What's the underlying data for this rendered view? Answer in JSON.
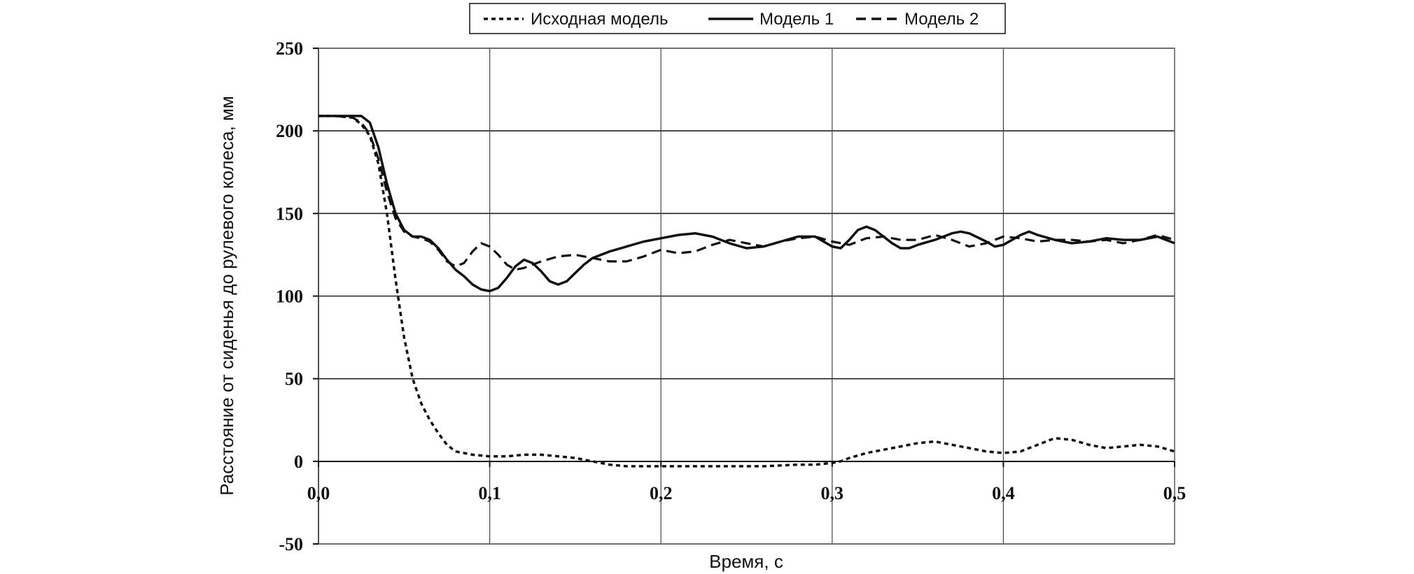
{
  "chart_data": {
    "type": "line",
    "xlabel": "Время, с",
    "ylabel": "Расстояние от сиденья до рулевого колеса, мм",
    "xlim": [
      0,
      0.5
    ],
    "ylim": [
      -50,
      250
    ],
    "x_ticks": [
      0,
      0.1,
      0.2,
      0.3,
      0.4,
      0.5
    ],
    "x_tick_labels": [
      "0,0",
      "0,1",
      "0,2",
      "0,3",
      "0,4",
      "0,5"
    ],
    "y_ticks": [
      -50,
      0,
      50,
      100,
      150,
      200,
      250
    ],
    "y_tick_labels": [
      "-50",
      "0",
      "50",
      "100",
      "150",
      "200",
      "250"
    ],
    "grid": true,
    "legend_position": "top-center",
    "series": [
      {
        "name": "Исходная модель",
        "style": "dotted",
        "color": "#111111",
        "points": [
          [
            0,
            209
          ],
          [
            0.01,
            209
          ],
          [
            0.02,
            208
          ],
          [
            0.025,
            204
          ],
          [
            0.03,
            197
          ],
          [
            0.035,
            180
          ],
          [
            0.04,
            150
          ],
          [
            0.045,
            110
          ],
          [
            0.05,
            75
          ],
          [
            0.055,
            50
          ],
          [
            0.06,
            35
          ],
          [
            0.065,
            25
          ],
          [
            0.07,
            17
          ],
          [
            0.075,
            10
          ],
          [
            0.08,
            6
          ],
          [
            0.085,
            5
          ],
          [
            0.09,
            4
          ],
          [
            0.1,
            3
          ],
          [
            0.11,
            3
          ],
          [
            0.12,
            4
          ],
          [
            0.13,
            4
          ],
          [
            0.14,
            3
          ],
          [
            0.15,
            2
          ],
          [
            0.16,
            0
          ],
          [
            0.17,
            -2
          ],
          [
            0.18,
            -3
          ],
          [
            0.19,
            -3
          ],
          [
            0.2,
            -3
          ],
          [
            0.21,
            -3
          ],
          [
            0.22,
            -3
          ],
          [
            0.24,
            -3
          ],
          [
            0.26,
            -3
          ],
          [
            0.28,
            -2
          ],
          [
            0.29,
            -2
          ],
          [
            0.3,
            -1
          ],
          [
            0.305,
            0
          ],
          [
            0.31,
            2
          ],
          [
            0.32,
            5
          ],
          [
            0.33,
            7
          ],
          [
            0.34,
            9
          ],
          [
            0.35,
            11
          ],
          [
            0.36,
            12
          ],
          [
            0.37,
            10
          ],
          [
            0.38,
            8
          ],
          [
            0.39,
            6
          ],
          [
            0.4,
            5
          ],
          [
            0.41,
            6
          ],
          [
            0.42,
            10
          ],
          [
            0.43,
            14
          ],
          [
            0.44,
            13
          ],
          [
            0.45,
            10
          ],
          [
            0.46,
            8
          ],
          [
            0.47,
            9
          ],
          [
            0.48,
            10
          ],
          [
            0.49,
            9
          ],
          [
            0.5,
            6
          ]
        ]
      },
      {
        "name": "Модель 1",
        "style": "solid",
        "color": "#111111",
        "points": [
          [
            0,
            209
          ],
          [
            0.01,
            209
          ],
          [
            0.02,
            209
          ],
          [
            0.025,
            209
          ],
          [
            0.03,
            205
          ],
          [
            0.035,
            190
          ],
          [
            0.04,
            168
          ],
          [
            0.045,
            150
          ],
          [
            0.05,
            140
          ],
          [
            0.055,
            136
          ],
          [
            0.06,
            136
          ],
          [
            0.065,
            134
          ],
          [
            0.07,
            129
          ],
          [
            0.075,
            122
          ],
          [
            0.08,
            116
          ],
          [
            0.085,
            112
          ],
          [
            0.09,
            107
          ],
          [
            0.095,
            104
          ],
          [
            0.1,
            103
          ],
          [
            0.105,
            105
          ],
          [
            0.11,
            111
          ],
          [
            0.115,
            118
          ],
          [
            0.12,
            122
          ],
          [
            0.125,
            120
          ],
          [
            0.13,
            115
          ],
          [
            0.135,
            109
          ],
          [
            0.14,
            107
          ],
          [
            0.145,
            109
          ],
          [
            0.15,
            114
          ],
          [
            0.155,
            119
          ],
          [
            0.16,
            123
          ],
          [
            0.17,
            127
          ],
          [
            0.18,
            130
          ],
          [
            0.19,
            133
          ],
          [
            0.2,
            135
          ],
          [
            0.21,
            137
          ],
          [
            0.22,
            138
          ],
          [
            0.23,
            136
          ],
          [
            0.24,
            132
          ],
          [
            0.25,
            129
          ],
          [
            0.26,
            130
          ],
          [
            0.27,
            133
          ],
          [
            0.28,
            136
          ],
          [
            0.29,
            136
          ],
          [
            0.3,
            130
          ],
          [
            0.305,
            129
          ],
          [
            0.31,
            134
          ],
          [
            0.315,
            140
          ],
          [
            0.32,
            142
          ],
          [
            0.325,
            140
          ],
          [
            0.33,
            136
          ],
          [
            0.335,
            132
          ],
          [
            0.34,
            129
          ],
          [
            0.345,
            129
          ],
          [
            0.35,
            131
          ],
          [
            0.36,
            134
          ],
          [
            0.37,
            138
          ],
          [
            0.375,
            139
          ],
          [
            0.38,
            138
          ],
          [
            0.39,
            133
          ],
          [
            0.395,
            130
          ],
          [
            0.4,
            131
          ],
          [
            0.41,
            137
          ],
          [
            0.415,
            139
          ],
          [
            0.42,
            137
          ],
          [
            0.43,
            134
          ],
          [
            0.44,
            132
          ],
          [
            0.45,
            133
          ],
          [
            0.46,
            135
          ],
          [
            0.47,
            134
          ],
          [
            0.48,
            134
          ],
          [
            0.49,
            136
          ],
          [
            0.495,
            134
          ],
          [
            0.5,
            132
          ]
        ]
      },
      {
        "name": "Модель 2",
        "style": "dashed",
        "color": "#111111",
        "points": [
          [
            0,
            209
          ],
          [
            0.01,
            209
          ],
          [
            0.02,
            208
          ],
          [
            0.025,
            205
          ],
          [
            0.03,
            198
          ],
          [
            0.035,
            183
          ],
          [
            0.04,
            163
          ],
          [
            0.045,
            147
          ],
          [
            0.05,
            139
          ],
          [
            0.055,
            136
          ],
          [
            0.06,
            135
          ],
          [
            0.065,
            133
          ],
          [
            0.07,
            128
          ],
          [
            0.075,
            121
          ],
          [
            0.08,
            118
          ],
          [
            0.085,
            120
          ],
          [
            0.09,
            127
          ],
          [
            0.095,
            132
          ],
          [
            0.1,
            130
          ],
          [
            0.105,
            125
          ],
          [
            0.11,
            119
          ],
          [
            0.115,
            116
          ],
          [
            0.12,
            117
          ],
          [
            0.13,
            121
          ],
          [
            0.14,
            124
          ],
          [
            0.15,
            125
          ],
          [
            0.16,
            123
          ],
          [
            0.17,
            121
          ],
          [
            0.18,
            121
          ],
          [
            0.19,
            124
          ],
          [
            0.2,
            128
          ],
          [
            0.21,
            126
          ],
          [
            0.22,
            127
          ],
          [
            0.23,
            131
          ],
          [
            0.24,
            134
          ],
          [
            0.25,
            132
          ],
          [
            0.26,
            130
          ],
          [
            0.27,
            133
          ],
          [
            0.28,
            135
          ],
          [
            0.29,
            136
          ],
          [
            0.3,
            133
          ],
          [
            0.31,
            131
          ],
          [
            0.32,
            135
          ],
          [
            0.33,
            136
          ],
          [
            0.34,
            134
          ],
          [
            0.35,
            134
          ],
          [
            0.36,
            137
          ],
          [
            0.37,
            134
          ],
          [
            0.38,
            130
          ],
          [
            0.39,
            132
          ],
          [
            0.4,
            136
          ],
          [
            0.41,
            135
          ],
          [
            0.42,
            133
          ],
          [
            0.43,
            134
          ],
          [
            0.44,
            134
          ],
          [
            0.45,
            133
          ],
          [
            0.46,
            134
          ],
          [
            0.47,
            132
          ],
          [
            0.48,
            134
          ],
          [
            0.49,
            137
          ],
          [
            0.5,
            134
          ]
        ]
      }
    ]
  }
}
